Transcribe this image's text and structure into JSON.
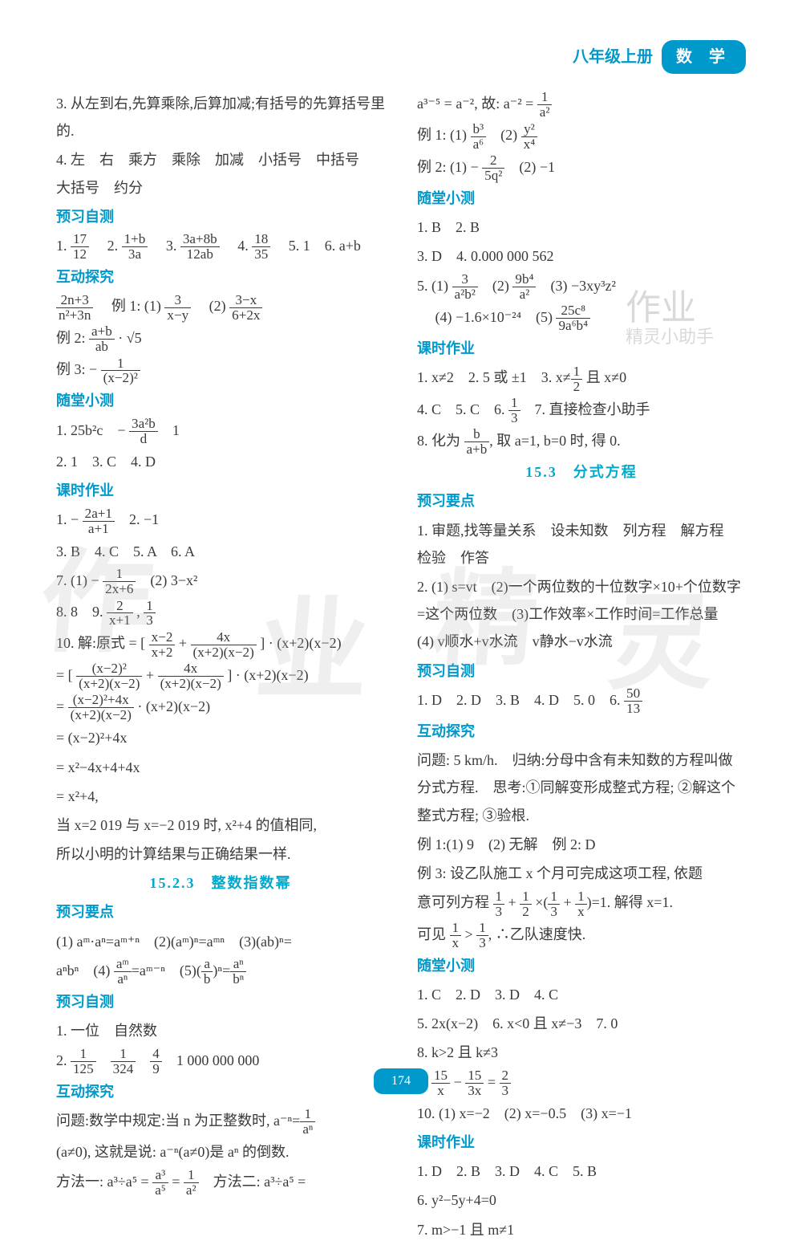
{
  "header": {
    "grade": "八年级上册",
    "subject": "数 学"
  },
  "page_number": "174",
  "colors": {
    "accent": "#0099cc",
    "text": "#3a3a3a",
    "bg": "#ffffff"
  },
  "watermark": {
    "chars": [
      "作",
      "业",
      "精",
      "灵"
    ],
    "stamp1": "作业",
    "stamp2": "精灵小助手"
  },
  "left": {
    "p3": "3. 从左到右,先算乘除,后算加减;有括号的先算括号里的.",
    "p4": "4. 左　右　乘方　乘除　加减　小括号　中括号　大括号　约分",
    "h_yuxi": "预习自测",
    "yuxi_line": "1. 17/12　2. (1+b)/3a　3. (3a+8b)/12ab　4. 18/35　5. 1　6. a+b",
    "h_hudong": "互动探究",
    "hd1": "(2n+3)/(n²+3n)　例 1:(1) 3/(x−y)　(2) (3−x)/(6+2x)",
    "hd2": "例 2: (a+b)/ab · √5",
    "hd3": "例 3: − 1/(x−2)²",
    "h_suitang": "随堂小测",
    "st1": "1. 25b²c　− 3a²b/d　1",
    "st2": "2. 1　3. C　4. D",
    "h_keshi": "课时作业",
    "ks1": "1. − (2a+1)/(a+1)　2. −1",
    "ks2": "3. B　4. C　5. A　6. A",
    "ks3": "7. (1) − 1/(2x+6)　(2) 3−x²",
    "ks4": "8. 8　9. 2/(x+1) , 1/3",
    "ks10_head": "10. 解:原式 =",
    "ks10_a": "[ (x−2)/(x+2) + 4x/((x+2)(x−2)) ] · (x+2)(x−2)",
    "ks10_b": "= [ (x−2)²/((x+2)(x−2)) + 4x/((x+2)(x−2)) ] · (x+2)(x−2)",
    "ks10_c": "= ((x−2)²+4x)/((x+2)(x−2)) · (x+2)(x−2)",
    "ks10_d": "= (x−2)²+4x",
    "ks10_e": "= x²−4x+4+4x",
    "ks10_f": "= x²+4,",
    "ks10_g": "当 x=2 019 与 x=−2 019 时, x²+4 的值相同,",
    "ks10_h": "所以小明的计算结果与正确结果一样.",
    "sec_title": "15.2.3　整数指数幂",
    "h_yaodian": "预习要点",
    "yd1": "(1) aᵐ·aⁿ=aᵐ⁺ⁿ　(2)(aᵐ)ⁿ=aᵐⁿ　(3)(ab)ⁿ=",
    "yd2": "aⁿbⁿ　(4) aᵐ/aⁿ=aᵐ⁻ⁿ　(5)(a/b)ⁿ=aⁿ/bⁿ",
    "h_yuxi2": "预习自测",
    "yx2a": "1. 一位　自然数",
    "yx2b": "2. 1/125　1/324　4/9　1 000 000 000",
    "h_hudong2": "互动探究",
    "hd2a": "问题:数学中规定:当 n 为正整数时, a⁻ⁿ=1/aⁿ",
    "hd2b": "(a≠0), 这就是说: a⁻ⁿ(a≠0)是 aⁿ 的倒数.",
    "hd2c": "方法一: a³÷a⁵ = a³/a⁵ = 1/a²　方法二: a³÷a⁵ ="
  },
  "right": {
    "r1": "a³⁻⁵ = a⁻², 故: a⁻² = 1/a²",
    "r2": "例 1:(1) b³/a⁶　(2) y²/x⁴",
    "r3": "例 2:(1) − 2/5q²　(2) −1",
    "h_suitang": "随堂小测",
    "st_a": "1. B　2. B",
    "st_b": "3. D　4. 0.000 000 562",
    "st_c": "5. (1) 3/a²b²　(2) 9b⁴/a²　(3) −3xy³z²",
    "st_d": "　 (4) −1.6×10⁻²⁴　(5) 25c⁸/9a⁶b⁴",
    "h_keshi": "课时作业",
    "ks_a": "1. x≠2　2. 5 或 ±1　3. x≠1/2 且 x≠0",
    "ks_b": "4. C　5. C　6. 1/3　7. 直接检查小助手",
    "ks_c": "8. 化为 b/(a+b), 取 a=1, b=0 时, 得 0.",
    "sec_title": "15.3　分式方程",
    "h_yaodian": "预习要点",
    "yd_a": "1. 审题,找等量关系　设未知数　列方程　解方程　检验　作答",
    "yd_b": "2. (1) s=vt　(2)一个两位数的十位数字×10+个位数字=这个两位数　(3)工作效率×工作时间=工作总量　(4) v顺水+v水流　v静水−v水流",
    "h_yuxi": "预习自测",
    "yx_a": "1. D　2. D　3. B　4. D　5. 0　6. 50/13",
    "h_hudong": "互动探究",
    "hd_a": "问题: 5 km/h.　归纳:分母中含有未知数的方程叫做分式方程.　思考:①同解变形成整式方程; ②解这个整式方程; ③验根.",
    "hd_b": "例 1:(1) 9　(2) 无解　例 2: D",
    "hd_c": "例 3: 设乙队施工 x 个月可完成这项工程, 依题",
    "hd_d": "意可列方程 1/3 + 1/2 ×(1/3 + 1/x)=1. 解得 x=1.",
    "hd_e": "可见 1/x > 1/3, ∴乙队速度快.",
    "h_suitang2": "随堂小测",
    "st2_a": "1. C　2. D　3. D　4. C",
    "st2_b": "5. 2x(x−2)　6. x<0 且 x≠−3　7. 0",
    "st2_c": "8. k>2 且 k≠3",
    "st2_d": "9. 15/x − 15/3x = 2/3",
    "st2_e": "10. (1) x=−2　(2) x=−0.5　(3) x=−1",
    "h_keshi2": "课时作业",
    "ks2_a": "1. D　2. B　3. D　4. C　5. B",
    "ks2_b": "6. y²−5y+4=0",
    "ks2_c": "7. m>−1 且 m≠1"
  }
}
